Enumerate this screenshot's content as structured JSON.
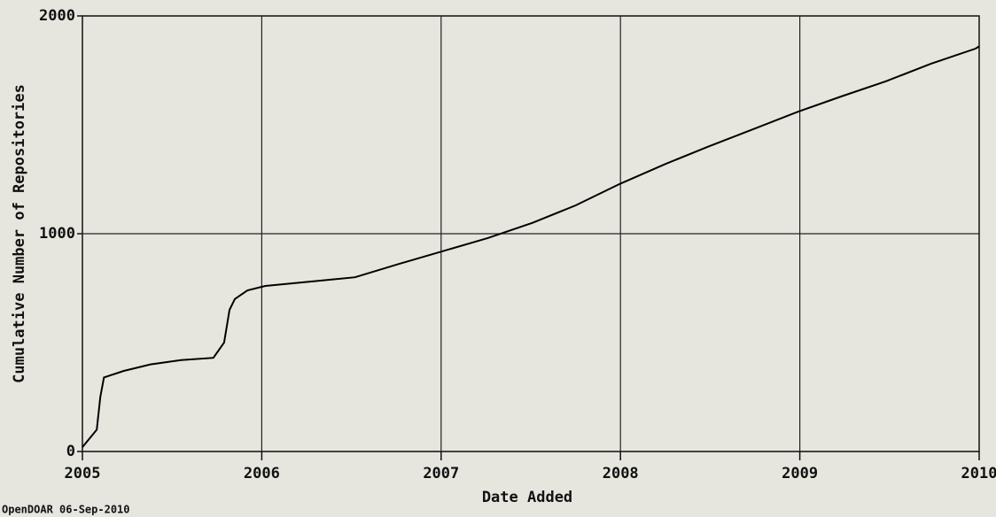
{
  "chart_data": {
    "type": "line",
    "xlabel": "Date Added",
    "ylabel": "Cumulative Number of Repositories",
    "footer": "OpenDOAR 06-Sep-2010",
    "x": [
      2005.0,
      2005.08,
      2005.1,
      2005.12,
      2005.23,
      2005.38,
      2005.55,
      2005.73,
      2005.79,
      2005.82,
      2005.85,
      2005.92,
      2006.02,
      2006.27,
      2006.52,
      2006.76,
      2007.01,
      2007.26,
      2007.51,
      2007.75,
      2008.0,
      2008.25,
      2008.49,
      2008.74,
      2008.99,
      2009.23,
      2009.48,
      2009.73,
      2009.98,
      2010.0
    ],
    "series": [
      {
        "name": "Repositories",
        "color": "#000000",
        "values": [
          20,
          100,
          250,
          340,
          370,
          400,
          420,
          430,
          500,
          650,
          700,
          740,
          760,
          780,
          800,
          860,
          920,
          980,
          1050,
          1130,
          1230,
          1320,
          1400,
          1480,
          1560,
          1630,
          1700,
          1780,
          1850,
          1860
        ]
      }
    ],
    "xlim": [
      2005,
      2010
    ],
    "xticks": [
      2005,
      2006,
      2007,
      2008,
      2009,
      2010
    ],
    "ylim": [
      0,
      2000
    ],
    "yticks": [
      0,
      1000,
      2000
    ],
    "grid": true
  }
}
